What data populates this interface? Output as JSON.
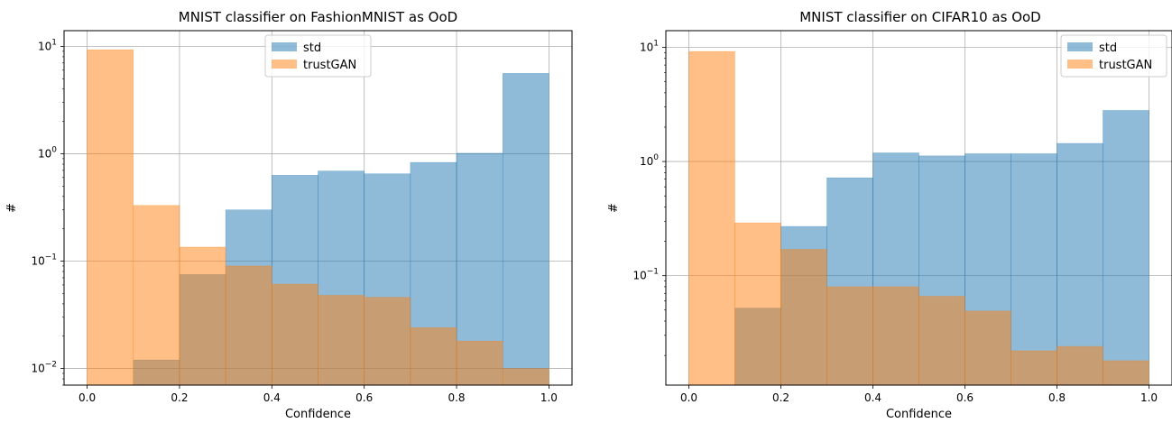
{
  "chart_data": [
    {
      "type": "bar",
      "title": "MNIST classifier on FashionMNIST as OoD",
      "xlabel": "Confidence",
      "ylabel": "#",
      "yscale": "log",
      "xlim": [
        -0.05,
        1.05
      ],
      "ylim": [
        0.007,
        14
      ],
      "xticks": [
        "0.0",
        "0.2",
        "0.4",
        "0.6",
        "0.8",
        "1.0"
      ],
      "yticks": [
        {
          "value": 0.01,
          "base": "10",
          "exp": "−2"
        },
        {
          "value": 0.1,
          "base": "10",
          "exp": "−1"
        },
        {
          "value": 1,
          "base": "10",
          "exp": "0"
        },
        {
          "value": 10,
          "base": "10",
          "exp": "1"
        }
      ],
      "grid": true,
      "legend_position": "top-center",
      "bin_edges": [
        0.0,
        0.1,
        0.2,
        0.3,
        0.4,
        0.5,
        0.6,
        0.7,
        0.8,
        0.9,
        1.0
      ],
      "series": [
        {
          "name": "std",
          "color": "#1f77b4",
          "values": [
            0,
            0.012,
            0.075,
            0.3,
            0.63,
            0.69,
            0.65,
            0.83,
            1.01,
            5.6
          ]
        },
        {
          "name": "trustGAN",
          "color": "#ff7f0e",
          "values": [
            9.3,
            0.33,
            0.135,
            0.09,
            0.061,
            0.048,
            0.046,
            0.024,
            0.018,
            0.01
          ]
        }
      ]
    },
    {
      "type": "bar",
      "title": "MNIST classifier on CIFAR10 as OoD",
      "xlabel": "Confidence",
      "ylabel": "#",
      "yscale": "log",
      "xlim": [
        -0.05,
        1.05
      ],
      "ylim": [
        0.011,
        14
      ],
      "xticks": [
        "0.0",
        "0.2",
        "0.4",
        "0.6",
        "0.8",
        "1.0"
      ],
      "yticks": [
        {
          "value": 0.1,
          "base": "10",
          "exp": "−1"
        },
        {
          "value": 1,
          "base": "10",
          "exp": "0"
        },
        {
          "value": 10,
          "base": "10",
          "exp": "1"
        }
      ],
      "grid": true,
      "legend_position": "top-right",
      "bin_edges": [
        0.0,
        0.1,
        0.2,
        0.3,
        0.4,
        0.5,
        0.6,
        0.7,
        0.8,
        0.9,
        1.0
      ],
      "series": [
        {
          "name": "std",
          "color": "#1f77b4",
          "values": [
            0,
            0.052,
            0.27,
            0.72,
            1.19,
            1.12,
            1.17,
            1.17,
            1.44,
            2.8
          ]
        },
        {
          "name": "trustGAN",
          "color": "#ff7f0e",
          "values": [
            9.2,
            0.29,
            0.17,
            0.08,
            0.08,
            0.066,
            0.049,
            0.022,
            0.024,
            0.018
          ]
        }
      ]
    }
  ]
}
